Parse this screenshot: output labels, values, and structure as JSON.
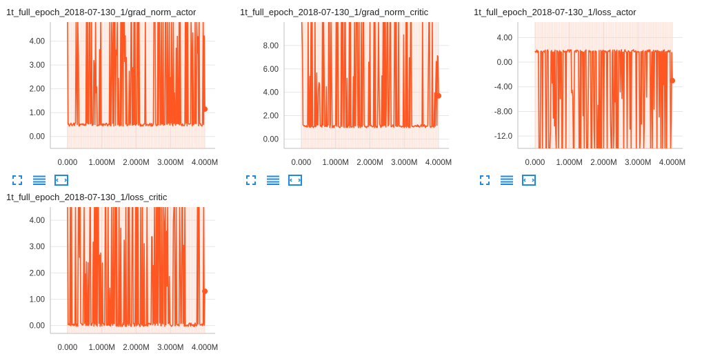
{
  "colors": {
    "series": "#ff5722",
    "series_faint": "#fbd0bf",
    "grid": "#e6e6e6",
    "axis": "#bdbdbd",
    "icon": "#1e88e5"
  },
  "chart_data": [
    {
      "type": "line",
      "title": "1t_full_epoch_2018-07-130_1/grad_norm_actor",
      "xlabel": "",
      "ylabel": "",
      "xlim": [
        -500000,
        4300000
      ],
      "ylim": [
        -0.5,
        4.8
      ],
      "x_ticks": [
        0,
        1000000,
        2000000,
        3000000,
        4000000
      ],
      "x_tick_labels": [
        "0.000",
        "1.000M",
        "2.000M",
        "3.000M",
        "4.000M"
      ],
      "y_ticks": [
        0,
        1,
        2,
        3,
        4
      ],
      "y_tick_labels": [
        "0.00",
        "1.00",
        "2.00",
        "3.00",
        "4.00"
      ],
      "grid": true,
      "series": [
        {
          "x_start": 0,
          "x_end": 4000000,
          "baseline": 0.5,
          "spike_to": 4.8,
          "last_value": 1.15
        }
      ]
    },
    {
      "type": "line",
      "title": "1t_full_epoch_2018-07-130_1/grad_norm_critic",
      "xlabel": "",
      "ylabel": "",
      "xlim": [
        -500000,
        4300000
      ],
      "ylim": [
        -0.8,
        10.0
      ],
      "x_ticks": [
        0,
        1000000,
        2000000,
        3000000,
        4000000
      ],
      "x_tick_labels": [
        "0.000",
        "1.000M",
        "2.000M",
        "3.000M",
        "4.000M"
      ],
      "y_ticks": [
        0,
        2,
        4,
        6,
        8
      ],
      "y_tick_labels": [
        "0.00",
        "2.00",
        "4.00",
        "6.00",
        "8.00"
      ],
      "grid": true,
      "series": [
        {
          "x_start": 0,
          "x_end": 4000000,
          "baseline": 1.1,
          "spike_to": 10.0,
          "last_value": 3.7
        }
      ]
    },
    {
      "type": "line",
      "title": "1t_full_epoch_2018-07-130_1/loss_actor",
      "xlabel": "",
      "ylabel": "",
      "xlim": [
        -500000,
        4300000
      ],
      "ylim": [
        -14.0,
        6.5
      ],
      "x_ticks": [
        0,
        1000000,
        2000000,
        3000000,
        4000000
      ],
      "x_tick_labels": [
        "0.000",
        "1.000M",
        "2.000M",
        "3.000M",
        "4.000M"
      ],
      "y_ticks": [
        4,
        0,
        -4,
        -8,
        -12
      ],
      "y_tick_labels": [
        "4.00",
        "0.00",
        "-4.00",
        "-8.00",
        "-12.0"
      ],
      "grid": true,
      "series": [
        {
          "x_start": 0,
          "x_end": 4000000,
          "baseline": 1.8,
          "spike_to": -14.0,
          "last_value": -3.0
        }
      ]
    },
    {
      "type": "line",
      "title": "1t_full_epoch_2018-07-130_1/loss_critic",
      "xlabel": "",
      "ylabel": "",
      "xlim": [
        -500000,
        4300000
      ],
      "ylim": [
        -0.3,
        4.5
      ],
      "x_ticks": [
        0,
        1000000,
        2000000,
        3000000,
        4000000
      ],
      "x_tick_labels": [
        "0.000",
        "1.000M",
        "2.000M",
        "3.000M",
        "4.000M"
      ],
      "y_ticks": [
        0,
        1,
        2,
        3,
        4
      ],
      "y_tick_labels": [
        "0.00",
        "1.00",
        "2.00",
        "3.00",
        "4.00"
      ],
      "grid": true,
      "series": [
        {
          "x_start": 0,
          "x_end": 4000000,
          "baseline": 0.03,
          "spike_to": 4.5,
          "last_value": 1.3
        }
      ]
    }
  ],
  "controls": [
    {
      "name": "fullscreen-icon"
    },
    {
      "name": "toggle-log-scale-icon"
    },
    {
      "name": "fit-domain-icon"
    }
  ]
}
